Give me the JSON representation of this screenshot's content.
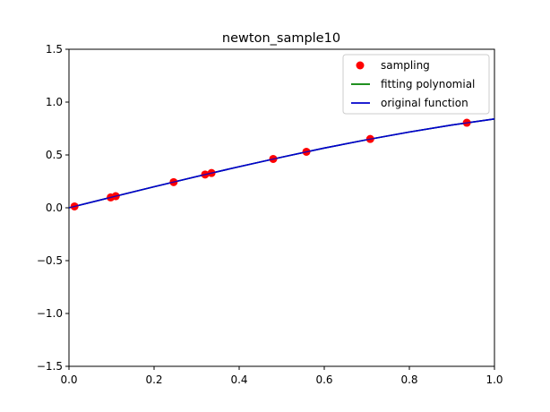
{
  "chart_data": {
    "type": "line",
    "title": "newton_sample10",
    "xlabel": "",
    "ylabel": "",
    "xlim": [
      0.0,
      1.0
    ],
    "ylim": [
      -1.5,
      1.5
    ],
    "xticks": [
      "0.0",
      "0.2",
      "0.4",
      "0.6",
      "0.8",
      "1.0"
    ],
    "yticks": [
      "1.5",
      "1.0",
      "0.5",
      "0.0",
      "−0.5",
      "−1.0",
      "−1.5"
    ],
    "legend_position": "top-right",
    "grid": false,
    "series": [
      {
        "name": "sampling",
        "kind": "scatter",
        "color": "#ff0000",
        "points": [
          [
            0.013,
            0.013
          ],
          [
            0.098,
            0.098
          ],
          [
            0.11,
            0.11
          ],
          [
            0.246,
            0.243
          ],
          [
            0.32,
            0.315
          ],
          [
            0.335,
            0.329
          ],
          [
            0.48,
            0.462
          ],
          [
            0.558,
            0.53
          ],
          [
            0.708,
            0.651
          ],
          [
            0.935,
            0.805
          ]
        ]
      },
      {
        "name": "fitting polynomial",
        "kind": "line",
        "color": "#008000",
        "x": [
          0.0,
          0.1,
          0.2,
          0.3,
          0.4,
          0.5,
          0.6,
          0.7,
          0.8,
          0.9,
          1.0
        ],
        "y": [
          0.0,
          0.1,
          0.199,
          0.296,
          0.389,
          0.479,
          0.565,
          0.644,
          0.717,
          0.783,
          0.841
        ]
      },
      {
        "name": "original function",
        "kind": "line",
        "color": "#0000cc",
        "x": [
          0.0,
          0.1,
          0.2,
          0.3,
          0.4,
          0.5,
          0.6,
          0.7,
          0.8,
          0.9,
          1.0
        ],
        "y": [
          0.0,
          0.1,
          0.199,
          0.296,
          0.389,
          0.479,
          0.565,
          0.644,
          0.717,
          0.783,
          0.841
        ]
      }
    ]
  }
}
